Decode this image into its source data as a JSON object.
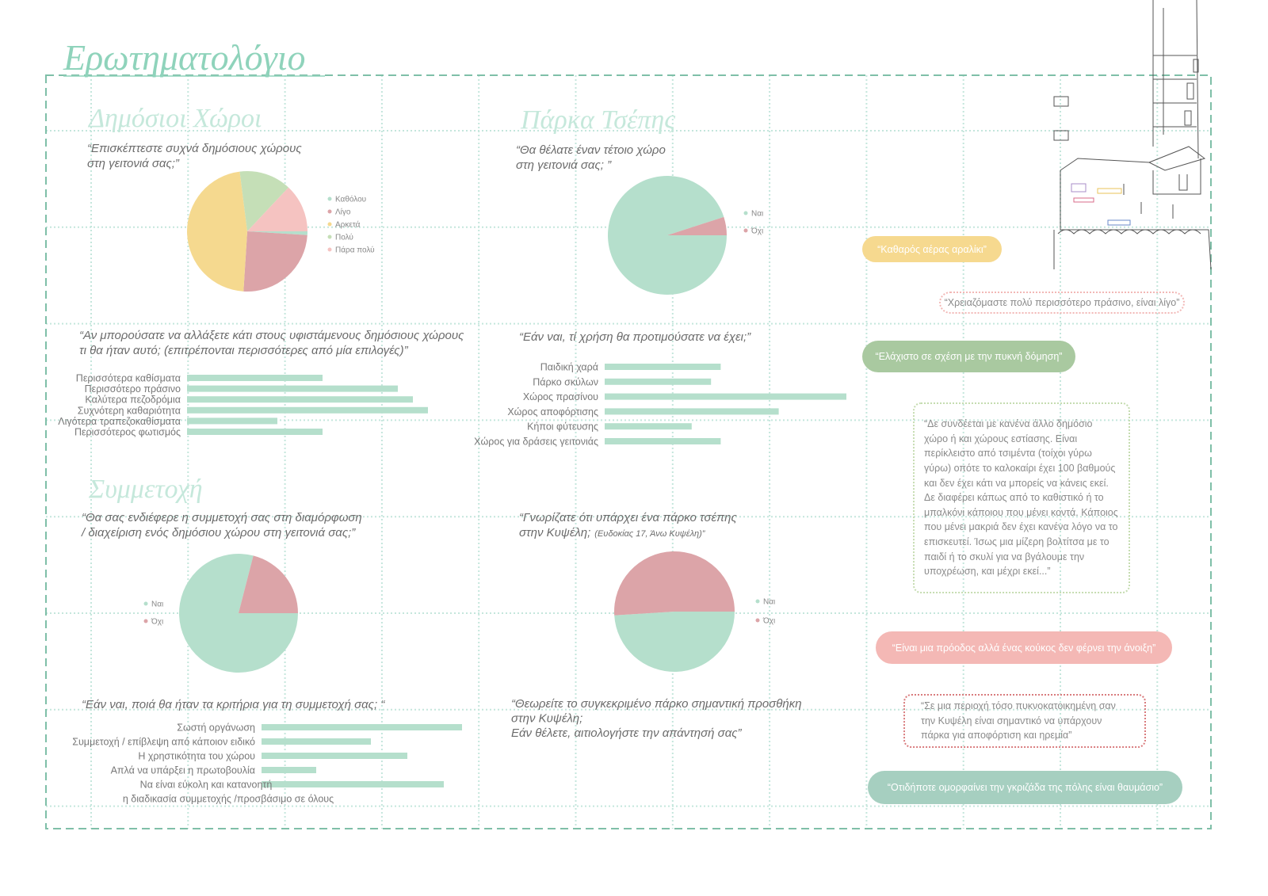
{
  "title": "Ερωτηματολόγιο",
  "sections": [
    "Δημόσιοι Χώροι",
    "Πάρκα Τσέπης",
    "Συμμετοχή"
  ],
  "chart_data": [
    {
      "type": "pie",
      "title": [
        "“Επισκέπτεστε συχνά δημόσιους χώρους",
        "στη γειτονιά σας;”"
      ],
      "categories": [
        "Καθόλου",
        "Λίγο",
        "Αρκετά",
        "Πολύ",
        "Πάρα πολύ"
      ],
      "values": [
        1,
        25,
        47,
        14,
        13
      ],
      "colors": [
        "#b5dfcc",
        "#dca4a8",
        "#f5d98f",
        "#c5dfb7",
        "#f5c3c1"
      ]
    },
    {
      "type": "pie",
      "title": [
        "“Θα θέλατε έναν τέτοιο χώρο",
        "στη γειτονιά σας; ”"
      ],
      "categories": [
        "Ναι",
        "Όχι"
      ],
      "values": [
        95,
        5
      ],
      "colors": [
        "#b5dfcc",
        "#dca4a8"
      ]
    },
    {
      "type": "barh",
      "title": [
        "“Αν μπορούσατε να αλλάξετε κάτι στους υφιστάμενους δημόσιους χώρους",
        "τι θα ήταν αυτό; (επιτρέπονται περισσότερες από μία επιλογές)”"
      ],
      "categories": [
        "Περισσότερα καθίσματα",
        "Περισσότερο πράσινο",
        "Καλύτερα πεζοδρόμια",
        "Συχνότερη καθαριότητα",
        "Λιγότερα τραπεζοκαθίσματα",
        "Περισσότερος φωτισμός"
      ],
      "values": [
        9,
        14,
        15,
        16,
        6,
        9
      ],
      "color": "#b5dfcc"
    },
    {
      "type": "barh",
      "title": [
        "“Εάν ναι, τί χρήση θα προτιμούσατε να έχει;”"
      ],
      "categories": [
        "Παιδική χαρά",
        "Πάρκο σκύλων",
        "Χώρος πρασίνου",
        "Χώρος αποφόρτισης",
        "Κήποι φύτευσης",
        "Χώρος για δράσεις γειτονιάς"
      ],
      "values": [
        12,
        11,
        25,
        18,
        9,
        12
      ],
      "color": "#b5dfcc"
    },
    {
      "type": "pie",
      "title": [
        "“Θα σας ενδιέφερε η συμμετοχή σας στη διαμόρφωση",
        "/ διαχείριση ενός δημόσιου χώρου στη γειτονιά σας;”"
      ],
      "categories": [
        "Ναι",
        "Όχι"
      ],
      "values": [
        79,
        21
      ],
      "colors": [
        "#b5dfcc",
        "#dca4a8"
      ]
    },
    {
      "type": "barh",
      "title": [
        "“Εάν ναι, ποιά θα ήταν τα κριτήρια για τη συμμετοχή σας; “"
      ],
      "categories": [
        "Σωστή οργάνωση",
        "Συμμετοχή / επίβλεψη από κάποιον ειδικό",
        "Η χρηστικότητα του χώρου",
        "Απλά να υπάρξει η πρωτοβουλία",
        "Να είναι εύκολη και κατανοητή\nη διαδικασία συμμετοχής /προσβάσιμο σε όλους"
      ],
      "values": [
        11,
        6,
        8,
        3,
        10
      ],
      "color": "#b5dfcc"
    },
    {
      "type": "pie",
      "title": [
        "“Γνωρίζατε ότι υπάρχει ένα πάρκο τσέπης",
        "στην Κυψέλη;"
      ],
      "subtitle": "(Ευδοκίας 17, Άνω Κυψέλη)”",
      "categories": [
        "Ναι",
        "Όχι"
      ],
      "values": [
        49,
        51
      ],
      "colors": [
        "#b5dfcc",
        "#dca4a8"
      ]
    }
  ],
  "open_question": [
    "“Θεωρείτε το συγκεκριμένο πάρκο σημαντική προσθήκη",
    "στην Κυψέλη;",
    "Εάν θέλετε, αιτιολογήστε την απάντησή σας”"
  ],
  "quotes": [
    "“Καθαρός αέρας αραλίκι”",
    "“Χρειαζόμαστε πολύ περισσότερο πράσινο, είναι λίγο”",
    "“Ελάχιστο σε σχέση με την πυκνή δόμηση”",
    "“Δε συνδέεται με κανένα άλλο δημόσιο χώρο ή και χώρους εστίασης. Είναι περίκλειστο από τσιμέντα (τοίχοι γύρω γύρω) οπότε το καλοκαίρι έχει 100 βαθμούς και δεν έχει κάτι να μπορείς να κάνεις εκεί. Δε διαφέρει κάπως από το καθιστικό ή το μπαλκόνι κάποιου που μένει κοντά. Κάποιος που μένει μακριά δεν έχει κανένα λόγο να το επισκευτεί. Ίσως μια μίζερη βολτίτσα με το παιδί ή το σκυλί για να βγάλουμε την υποχρέωση, και μέχρι εκεί...”",
    "“Είναι μια πρόοδος αλλά ένας κούκος δεν φέρνει την άνοιξη”",
    "“Σε μια περιοχή τόσο πυκνοκατοικημένη σαν την Κυψέλη είναι σημαντικό να υπάρχουν πάρκα για αποφόρτιση και ηρεμία”",
    "“Οτιδήποτε ομορφαίνει την γκριζάδα της πόλης είναι θαυμάσιο”"
  ]
}
